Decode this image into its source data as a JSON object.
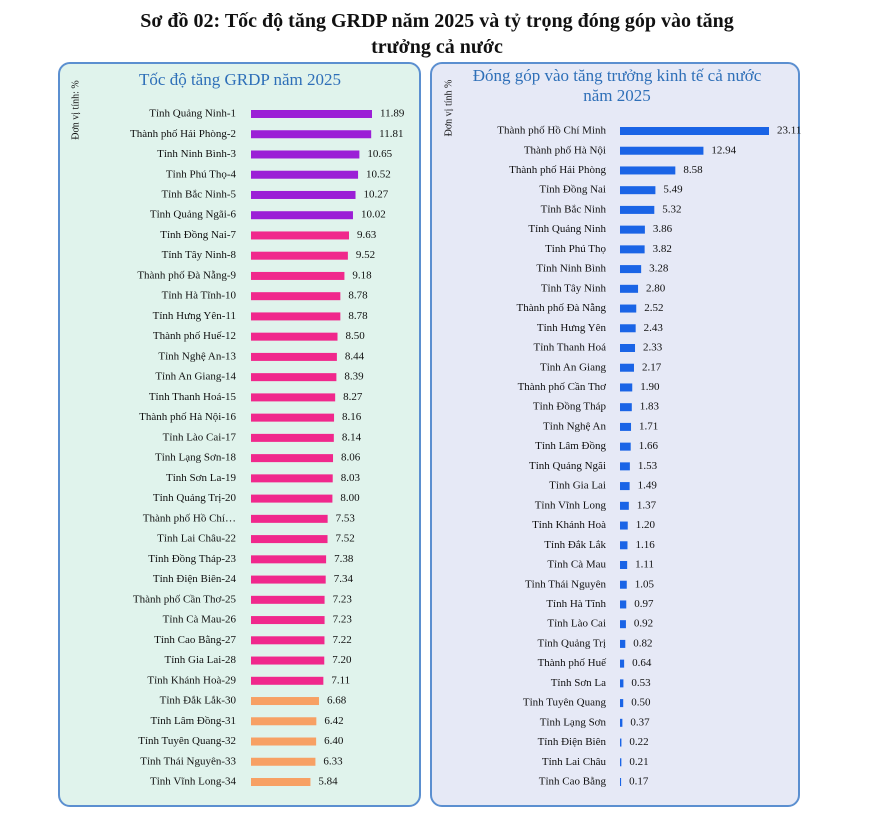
{
  "title": "Sơ đồ 02: Tốc độ tăng GRDP năm 2025 và tỷ trọng đóng góp vào tăng trưởng cả nước",
  "chart_data": [
    {
      "type": "bar",
      "orientation": "horizontal",
      "title": "Tốc độ tăng GRDP năm 2025",
      "y_label": "Đơn vị tính: %",
      "categories": [
        "Tỉnh Quảng Ninh-1",
        "Thành phố Hải Phòng-2",
        "Tỉnh Ninh Bình-3",
        "Tỉnh Phú Thọ-4",
        "Tỉnh Bắc Ninh-5",
        "Tỉnh Quảng Ngãi-6",
        "Tỉnh Đồng Nai-7",
        "Tỉnh Tây Ninh-8",
        "Thành phố Đà Nẵng-9",
        "Tỉnh Hà Tĩnh-10",
        "Tỉnh Hưng Yên-11",
        "Thành phố Huế-12",
        "Tỉnh Nghệ An-13",
        "Tỉnh An Giang-14",
        "Tỉnh Thanh Hoá-15",
        "Thành phố Hà Nội-16",
        "Tỉnh Lào Cai-17",
        "Tỉnh Lạng Sơn-18",
        "Tỉnh Sơn La-19",
        "Tỉnh Quảng Trị-20",
        "Thành phố Hồ Chí…",
        "Tỉnh Lai Châu-22",
        "Tỉnh Đồng Tháp-23",
        "Tỉnh Điện Biên-24",
        "Thành phố Cần Thơ-25",
        "Tỉnh Cà Mau-26",
        "Tỉnh Cao Bằng-27",
        "Tỉnh Gia Lai-28",
        "Tỉnh Khánh Hoà-29",
        "Tỉnh Đắk Lắk-30",
        "Tỉnh Lâm Đồng-31",
        "Tỉnh Tuyên Quang-32",
        "Tỉnh Thái Nguyên-33",
        "Tỉnh Vĩnh Long-34"
      ],
      "values": [
        11.89,
        11.81,
        10.65,
        10.52,
        10.27,
        10.02,
        9.63,
        9.52,
        9.18,
        8.78,
        8.78,
        8.5,
        8.44,
        8.39,
        8.27,
        8.16,
        8.14,
        8.06,
        8.03,
        8.0,
        7.53,
        7.52,
        7.38,
        7.34,
        7.23,
        7.23,
        7.22,
        7.2,
        7.11,
        6.68,
        6.42,
        6.4,
        6.33,
        5.84
      ],
      "value_labels": [
        "11.89",
        "11.81",
        "10.65",
        "10.52",
        "10.27",
        "10.02",
        "9.63",
        "9.52",
        "9.18",
        "8.78",
        "8.78",
        "8.50",
        "8.44",
        "8.39",
        "8.27",
        "8.16",
        "8.14",
        "8.06",
        "8.03",
        "8.00",
        "7.53",
        "7.52",
        "7.38",
        "7.34",
        "7.23",
        "7.23",
        "7.22",
        "7.20",
        "7.11",
        "6.68",
        "6.42",
        "6.40",
        "6.33",
        "5.84"
      ],
      "colors": [
        "#9b1fd6",
        "#9b1fd6",
        "#9b1fd6",
        "#9b1fd6",
        "#9b1fd6",
        "#9b1fd6",
        "#f0288c",
        "#f0288c",
        "#f0288c",
        "#f0288c",
        "#f0288c",
        "#f0288c",
        "#f0288c",
        "#f0288c",
        "#f0288c",
        "#f0288c",
        "#f0288c",
        "#f0288c",
        "#f0288c",
        "#f0288c",
        "#f0288c",
        "#f0288c",
        "#f0288c",
        "#f0288c",
        "#f0288c",
        "#f0288c",
        "#f0288c",
        "#f0288c",
        "#f0288c",
        "#f7a064",
        "#f7a064",
        "#f7a064",
        "#f7a064",
        "#f7a064"
      ]
    },
    {
      "type": "bar",
      "orientation": "horizontal",
      "title": "Đóng góp vào tăng trưởng kinh tế cả nước năm 2025",
      "y_label": "Đơn vị tính %",
      "categories": [
        "Thành phố Hồ Chí Minh",
        "Thành phố Hà Nội",
        "Thành phố Hải Phòng",
        "Tỉnh Đồng Nai",
        "Tỉnh Bắc Ninh",
        "Tỉnh Quảng Ninh",
        "Tỉnh Phú Thọ",
        "Tỉnh Ninh Bình",
        "Tỉnh Tây Ninh",
        "Thành phố Đà Nẵng",
        "Tỉnh Hưng Yên",
        "Tỉnh Thanh Hoá",
        "Tỉnh An Giang",
        "Thành phố Cần Thơ",
        "Tỉnh Đồng Tháp",
        "Tỉnh Nghệ An",
        "Tỉnh Lâm Đồng",
        "Tỉnh Quảng Ngãi",
        "Tỉnh Gia Lai",
        "Tỉnh Vĩnh Long",
        "Tỉnh Khánh Hoà",
        "Tỉnh Đắk Lắk",
        "Tỉnh Cà Mau",
        "Tỉnh Thái Nguyên",
        "Tỉnh Hà Tĩnh",
        "Tỉnh Lào Cai",
        "Tỉnh Quảng Trị",
        "Thành phố Huế",
        "Tỉnh Sơn La",
        "Tỉnh Tuyên Quang",
        "Tỉnh Lạng Sơn",
        "Tỉnh Điện Biên",
        "Tỉnh Lai Châu",
        "Tỉnh Cao Bằng"
      ],
      "values": [
        23.11,
        12.94,
        8.58,
        5.49,
        5.32,
        3.86,
        3.82,
        3.28,
        2.8,
        2.52,
        2.43,
        2.33,
        2.17,
        1.9,
        1.83,
        1.71,
        1.66,
        1.53,
        1.49,
        1.37,
        1.2,
        1.16,
        1.11,
        1.05,
        0.97,
        0.92,
        0.82,
        0.64,
        0.53,
        0.5,
        0.37,
        0.22,
        0.21,
        0.17
      ],
      "value_labels": [
        "23.11",
        "12.94",
        "8.58",
        "5.49",
        "5.32",
        "3.86",
        "3.82",
        "3.28",
        "2.80",
        "2.52",
        "2.43",
        "2.33",
        "2.17",
        "1.90",
        "1.83",
        "1.71",
        "1.66",
        "1.53",
        "1.49",
        "1.37",
        "1.20",
        "1.16",
        "1.11",
        "1.05",
        "0.97",
        "0.92",
        "0.82",
        "0.64",
        "0.53",
        "0.50",
        "0.37",
        "0.22",
        "0.21",
        "0.17"
      ],
      "color": "#1a64e6"
    }
  ]
}
